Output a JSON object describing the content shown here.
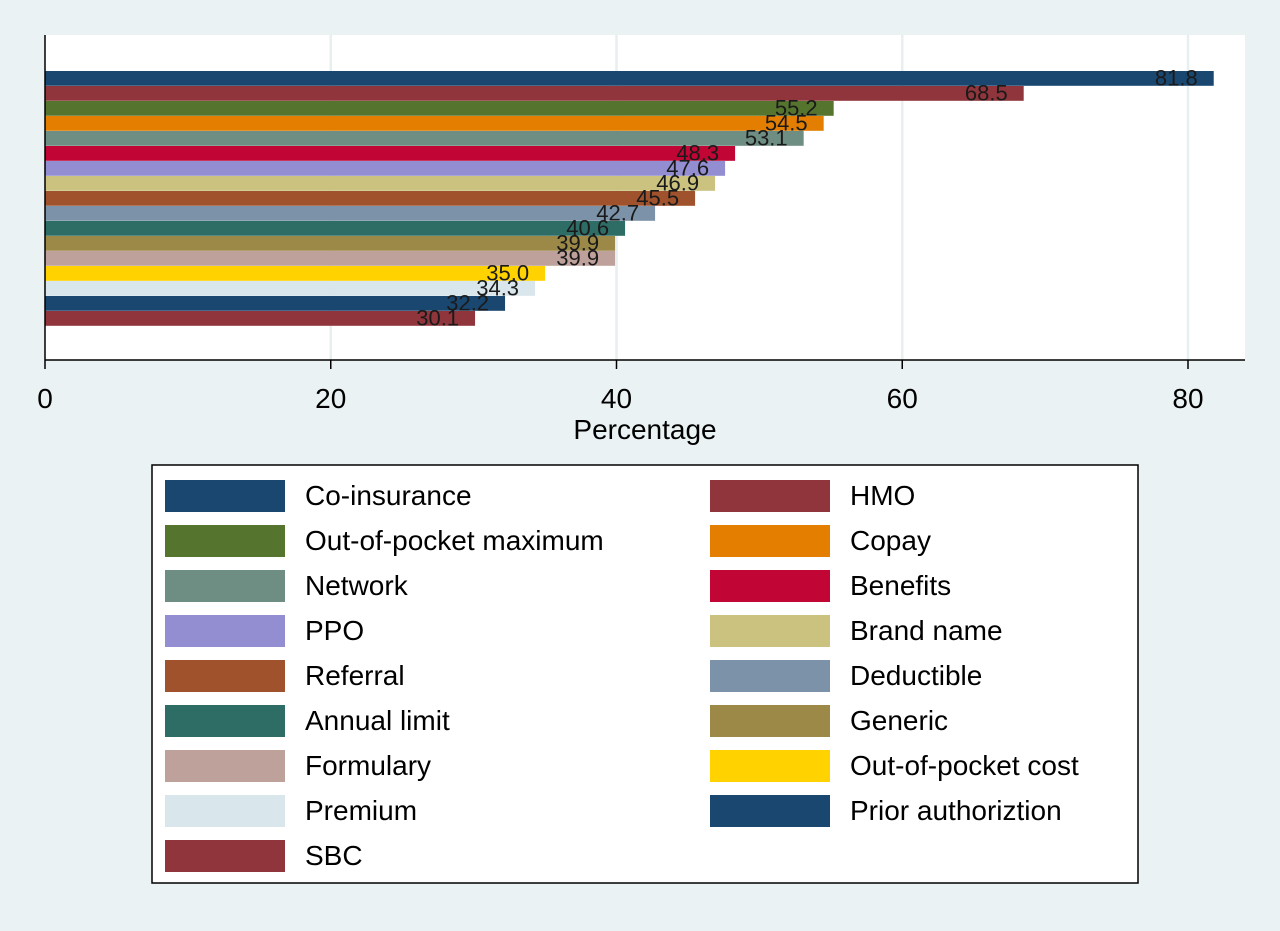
{
  "chart_data": {
    "type": "bar",
    "orientation": "horizontal",
    "xlabel": "Percentage",
    "ylabel": "",
    "title": "",
    "xlim": [
      0,
      84
    ],
    "x_ticks": [
      0,
      20,
      40,
      60,
      80
    ],
    "grid": true,
    "legend_position": "bottom",
    "series": [
      {
        "name": "Co-insurance",
        "value": 81.8,
        "label": "81.8",
        "color": "#1a476f"
      },
      {
        "name": "HMO",
        "value": 68.5,
        "label": "68.5",
        "color": "#90353b"
      },
      {
        "name": "Out-of-pocket maximum",
        "value": 55.2,
        "label": "55.2",
        "color": "#55752f"
      },
      {
        "name": "Copay",
        "value": 54.5,
        "label": "54.5",
        "color": "#e37e00"
      },
      {
        "name": "Network",
        "value": 53.1,
        "label": "53.1",
        "color": "#6e8e84"
      },
      {
        "name": "Benefits",
        "value": 48.3,
        "label": "48.3",
        "color": "#c10534"
      },
      {
        "name": "PPO",
        "value": 47.6,
        "label": "47.6",
        "color": "#938dd2"
      },
      {
        "name": "Brand name",
        "value": 46.9,
        "label": "46.9",
        "color": "#cac27e"
      },
      {
        "name": "Referral",
        "value": 45.5,
        "label": "45.5",
        "color": "#a0522d"
      },
      {
        "name": "Deductible",
        "value": 42.7,
        "label": "42.7",
        "color": "#7b92a8"
      },
      {
        "name": "Annual limit",
        "value": 40.6,
        "label": "40.6",
        "color": "#2d6d66"
      },
      {
        "name": "Generic",
        "value": 39.9,
        "label": "39.9",
        "color": "#9c8847"
      },
      {
        "name": "Formulary",
        "value": 39.9,
        "label": "39.9",
        "color": "#bfa19c"
      },
      {
        "name": "Out-of-pocket cost",
        "value": 35.0,
        "label": "35.0",
        "color": "#ffd200"
      },
      {
        "name": "Premium",
        "value": 34.3,
        "label": "34.3",
        "color": "#d9e6eb"
      },
      {
        "name": "Prior authoriztion",
        "value": 32.2,
        "label": "32.2",
        "color": "#1a476f"
      },
      {
        "name": "SBC",
        "value": 30.1,
        "label": "30.1",
        "color": "#90353b"
      }
    ]
  }
}
